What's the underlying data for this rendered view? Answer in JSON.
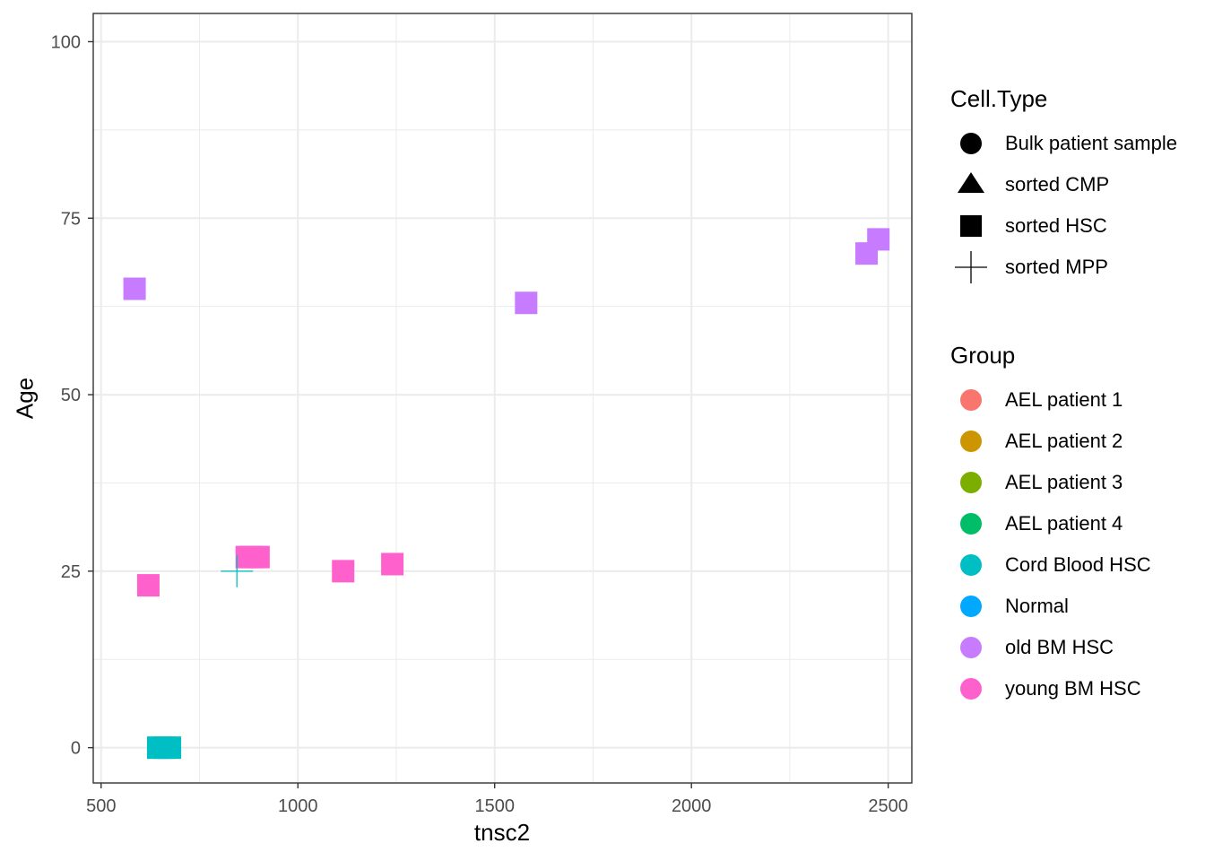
{
  "chart_data": {
    "type": "scatter",
    "xlabel": "tnsc2",
    "ylabel": "Age",
    "xlim": [
      480,
      2560
    ],
    "ylim": [
      -5,
      104
    ],
    "x_ticks": [
      500,
      1000,
      1500,
      2000,
      2500
    ],
    "y_ticks": [
      0,
      25,
      50,
      75,
      100
    ],
    "x_tick_labels": [
      "500",
      "1000",
      "1500",
      "2000",
      "2500"
    ],
    "y_tick_labels": [
      "0",
      "25",
      "50",
      "75",
      "100"
    ],
    "grid": true,
    "legend_position": "right",
    "legends": [
      {
        "title": "Cell.Type",
        "entries": [
          {
            "label": "Bulk patient sample",
            "shape": "circle"
          },
          {
            "label": "sorted CMP",
            "shape": "triangle"
          },
          {
            "label": "sorted HSC",
            "shape": "square"
          },
          {
            "label": "sorted MPP",
            "shape": "plus"
          }
        ]
      },
      {
        "title": "Group",
        "entries": [
          {
            "label": "AEL patient 1",
            "color": "#F8766D"
          },
          {
            "label": "AEL patient 2",
            "color": "#CD9600"
          },
          {
            "label": "AEL patient 3",
            "color": "#7CAE00"
          },
          {
            "label": "AEL patient 4",
            "color": "#00BE67"
          },
          {
            "label": "Cord Blood HSC",
            "color": "#00BFC4"
          },
          {
            "label": "Normal",
            "color": "#00A9FF"
          },
          {
            "label": "old BM HSC",
            "color": "#C77CFF"
          },
          {
            "label": "young BM HSC",
            "color": "#FF61CC"
          }
        ]
      }
    ],
    "points": [
      {
        "x": 585,
        "y": 65,
        "group": "old BM HSC",
        "shape": "square"
      },
      {
        "x": 1580,
        "y": 63,
        "group": "old BM HSC",
        "shape": "square"
      },
      {
        "x": 2445,
        "y": 70,
        "group": "old BM HSC",
        "shape": "square"
      },
      {
        "x": 2475,
        "y": 72,
        "group": "old BM HSC",
        "shape": "square"
      },
      {
        "x": 620,
        "y": 23,
        "group": "young BM HSC",
        "shape": "square"
      },
      {
        "x": 870,
        "y": 27,
        "group": "young BM HSC",
        "shape": "square"
      },
      {
        "x": 885,
        "y": 27,
        "group": "young BM HSC",
        "shape": "square"
      },
      {
        "x": 900,
        "y": 27,
        "group": "young BM HSC",
        "shape": "square"
      },
      {
        "x": 1115,
        "y": 25,
        "group": "young BM HSC",
        "shape": "square"
      },
      {
        "x": 1240,
        "y": 26,
        "group": "young BM HSC",
        "shape": "square"
      },
      {
        "x": 645,
        "y": 0,
        "group": "Cord Blood HSC",
        "shape": "square"
      },
      {
        "x": 660,
        "y": 0,
        "group": "Cord Blood HSC",
        "shape": "square"
      },
      {
        "x": 675,
        "y": 0,
        "group": "Cord Blood HSC",
        "shape": "square"
      },
      {
        "x": 845,
        "y": 25,
        "group": "Cord Blood HSC",
        "shape": "plus"
      }
    ]
  }
}
